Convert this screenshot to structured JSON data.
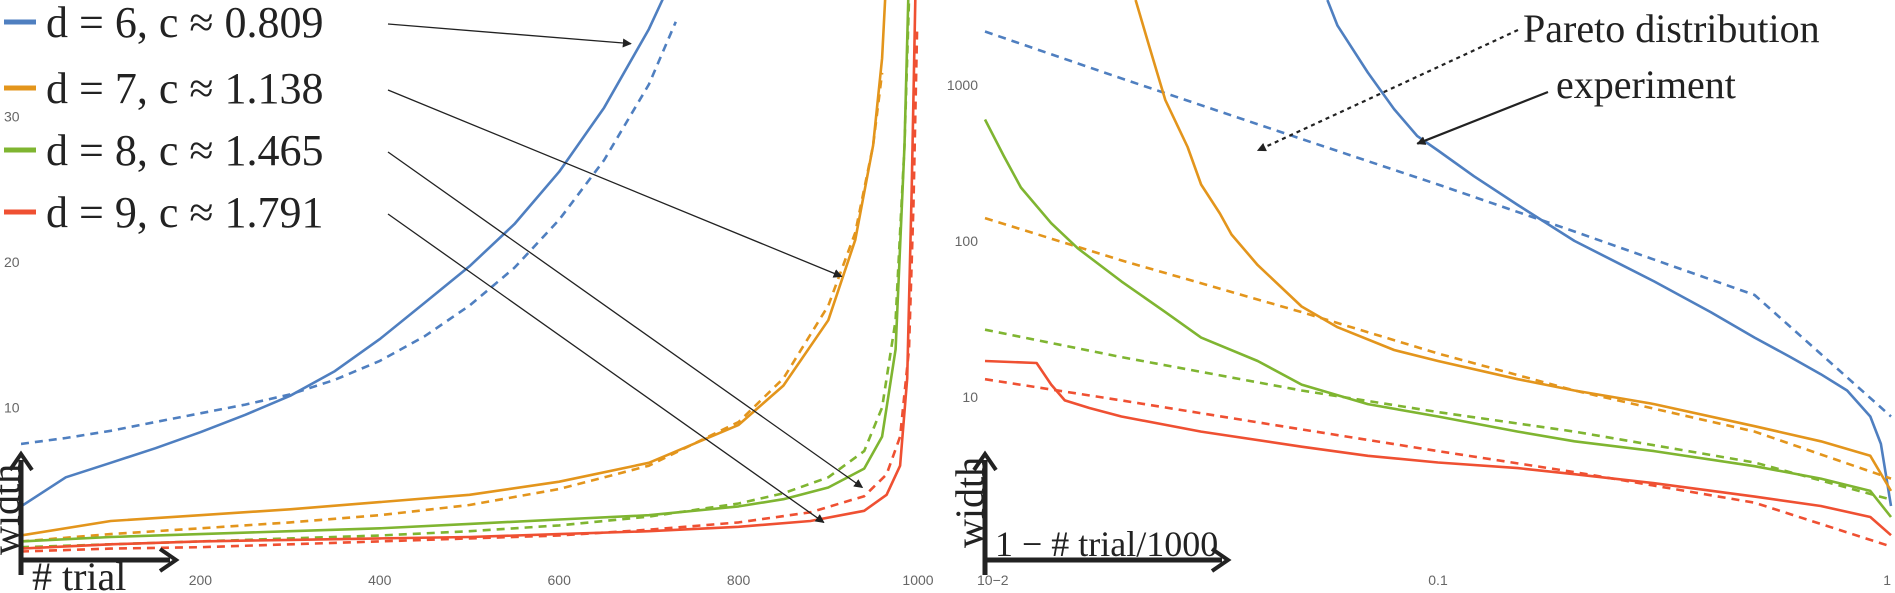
{
  "chart_data": [
    {
      "type": "line",
      "xlabel": "# trial",
      "ylabel": "width",
      "xlim": [
        0,
        1000
      ],
      "ylim": [
        0,
        38
      ],
      "xticks": [
        200,
        400,
        600,
        800,
        1000
      ],
      "yticks": [
        10,
        20,
        30
      ],
      "legend_placement": "top-left",
      "grid": false,
      "series": [
        {
          "name": "d = 6, c ≈ 0.809",
          "d": "6",
          "c": "0.809",
          "color": "#4f7fc0",
          "style": "solid",
          "x": [
            0,
            50,
            100,
            150,
            200,
            250,
            300,
            350,
            400,
            450,
            500,
            550,
            600,
            650,
            700,
            715,
            725
          ],
          "y": [
            3.2,
            5.2,
            6.2,
            7.2,
            8.3,
            9.5,
            10.8,
            12.5,
            14.7,
            17.2,
            19.7,
            22.6,
            26.2,
            30.6,
            36.0,
            38.0,
            40.0
          ]
        },
        {
          "name": "",
          "color": "#4f7fc0",
          "style": "dashed",
          "x": [
            0,
            50,
            100,
            150,
            200,
            250,
            300,
            350,
            400,
            450,
            500,
            550,
            600,
            650,
            700,
            730
          ],
          "y": [
            7.5,
            7.9,
            8.4,
            9.0,
            9.6,
            10.2,
            10.9,
            11.9,
            13.2,
            14.9,
            17.0,
            19.6,
            22.9,
            27.0,
            32.2,
            36.5
          ]
        },
        {
          "name": "d = 7, c ≈ 1.138",
          "d": "7",
          "c": "1.138",
          "color": "#e3951c",
          "style": "solid",
          "x": [
            0,
            100,
            200,
            300,
            400,
            500,
            600,
            700,
            800,
            850,
            900,
            930,
            950,
            960,
            965
          ],
          "y": [
            1.2,
            2.2,
            2.6,
            3.0,
            3.5,
            4.0,
            4.9,
            6.2,
            8.8,
            11.5,
            16.0,
            21.5,
            28.0,
            34.0,
            40.0
          ]
        },
        {
          "name": "",
          "color": "#e3951c",
          "style": "dashed",
          "x": [
            0,
            100,
            200,
            300,
            400,
            500,
            600,
            700,
            800,
            850,
            900,
            930,
            950,
            960
          ],
          "y": [
            0.8,
            1.3,
            1.7,
            2.1,
            2.6,
            3.3,
            4.4,
            6.0,
            9.0,
            12.0,
            17.0,
            22.0,
            28.0,
            33.0
          ]
        },
        {
          "name": "d = 8, c ≈ 1.465",
          "d": "8",
          "c": "1.465",
          "color": "#7fb531",
          "style": "solid",
          "x": [
            0,
            100,
            200,
            300,
            400,
            500,
            600,
            700,
            800,
            850,
            900,
            940,
            960,
            975,
            985,
            990
          ],
          "y": [
            0.8,
            1.1,
            1.3,
            1.5,
            1.7,
            2.0,
            2.3,
            2.6,
            3.2,
            3.7,
            4.5,
            5.8,
            8.0,
            14.0,
            28.0,
            40.0
          ]
        },
        {
          "name": "",
          "color": "#7fb531",
          "style": "dashed",
          "x": [
            0,
            100,
            200,
            300,
            400,
            500,
            600,
            700,
            800,
            850,
            900,
            940,
            960,
            975,
            985,
            990
          ],
          "y": [
            0.4,
            0.6,
            0.8,
            1.0,
            1.2,
            1.5,
            1.9,
            2.5,
            3.4,
            4.1,
            5.2,
            7.0,
            10.0,
            16.0,
            28.0,
            38.0
          ]
        },
        {
          "name": "d = 9, c ≈ 1.791",
          "d": "9",
          "c": "1.791",
          "color": "#ef5032",
          "style": "solid",
          "x": [
            0,
            100,
            200,
            300,
            400,
            500,
            600,
            700,
            800,
            880,
            940,
            965,
            980,
            988,
            993,
            997
          ],
          "y": [
            0.3,
            0.6,
            0.8,
            0.9,
            1.0,
            1.1,
            1.3,
            1.5,
            1.8,
            2.2,
            2.9,
            4.0,
            6.0,
            12.0,
            25.0,
            38.0
          ]
        },
        {
          "name": "",
          "color": "#ef5032",
          "style": "dashed",
          "x": [
            0,
            100,
            200,
            300,
            400,
            500,
            600,
            700,
            800,
            880,
            940,
            965,
            980,
            990,
            995,
            999
          ],
          "y": [
            0.1,
            0.3,
            0.4,
            0.6,
            0.8,
            1.0,
            1.2,
            1.6,
            2.1,
            2.8,
            3.9,
            5.4,
            8.0,
            14.0,
            24.0,
            36.0
          ]
        }
      ],
      "arrow_targets": [
        {
          "series": 0,
          "x": 680,
          "y": 35.0
        },
        {
          "series": 2,
          "x": 915,
          "y": 19.0
        },
        {
          "series": 4,
          "x": 938,
          "y": 4.5
        },
        {
          "series": 6,
          "x": 895,
          "y": 2.1
        }
      ]
    },
    {
      "type": "line",
      "xlabel": "1 −  # trial/1000",
      "ylabel": "width",
      "x_scale": "log",
      "y_scale": "log",
      "xlim": [
        0.01,
        1
      ],
      "ylim": [
        1,
        3500
      ],
      "xtick_labels": [
        "10−2",
        "0.1",
        "1"
      ],
      "xtick_values": [
        0.01,
        0.1,
        1
      ],
      "yticks": [
        10,
        100,
        1000
      ],
      "annotation": {
        "line1": "Pareto distribution",
        "line2": "experiment"
      },
      "annotation_targets": [
        {
          "label": "experiment",
          "series": 0,
          "x": 0.09,
          "y": 420
        },
        {
          "label": "Pareto distribution",
          "series": 1,
          "x": 0.04,
          "y": 380
        }
      ],
      "series": [
        {
          "color": "#4f7fc0",
          "style": "solid",
          "x": [
            0.057,
            0.06,
            0.07,
            0.08,
            0.09,
            0.1,
            0.12,
            0.15,
            0.2,
            0.25,
            0.3,
            0.4,
            0.5,
            0.6,
            0.7,
            0.8,
            0.9,
            0.95,
            1.0
          ],
          "y": [
            3500,
            2400,
            1200,
            700,
            470,
            380,
            260,
            170,
            100,
            72,
            55,
            35,
            24,
            18,
            14,
            11,
            7.5,
            5,
            2
          ]
        },
        {
          "color": "#4f7fc0",
          "style": "dashed",
          "x": [
            0.01,
            0.02,
            0.05,
            0.1,
            0.2,
            0.5,
            1.0
          ],
          "y": [
            2200,
            1100,
            450,
            230,
            115,
            45,
            7.5
          ]
        },
        {
          "color": "#e3951c",
          "style": "solid",
          "x": [
            0.0215,
            0.023,
            0.025,
            0.028,
            0.03,
            0.033,
            0.035,
            0.04,
            0.05,
            0.06,
            0.08,
            0.1,
            0.15,
            0.2,
            0.3,
            0.5,
            0.7,
            0.9,
            1.0
          ],
          "y": [
            3500,
            1800,
            800,
            400,
            230,
            150,
            110,
            70,
            38,
            28,
            20,
            17,
            13,
            11,
            9,
            6.5,
            5.2,
            4.2,
            2.5
          ]
        },
        {
          "color": "#e3951c",
          "style": "dashed",
          "x": [
            0.01,
            0.02,
            0.05,
            0.1,
            0.2,
            0.5,
            1.0
          ],
          "y": [
            140,
            75,
            35,
            19,
            11,
            6,
            3
          ]
        },
        {
          "color": "#7fb531",
          "style": "solid",
          "x": [
            0.01,
            0.011,
            0.012,
            0.014,
            0.016,
            0.02,
            0.025,
            0.03,
            0.04,
            0.05,
            0.07,
            0.1,
            0.15,
            0.2,
            0.3,
            0.5,
            0.7,
            0.9,
            1.0
          ],
          "y": [
            600,
            350,
            220,
            130,
            90,
            55,
            35,
            24,
            17,
            12,
            9,
            7.5,
            6,
            5.2,
            4.5,
            3.6,
            3,
            2.5,
            1.7
          ]
        },
        {
          "color": "#7fb531",
          "style": "dashed",
          "x": [
            0.01,
            0.02,
            0.05,
            0.1,
            0.2,
            0.5,
            1.0
          ],
          "y": [
            27,
            18,
            11,
            8,
            6,
            3.8,
            2.2
          ]
        },
        {
          "color": "#ef5032",
          "style": "solid",
          "x": [
            0.01,
            0.013,
            0.014,
            0.015,
            0.017,
            0.02,
            0.03,
            0.05,
            0.07,
            0.1,
            0.15,
            0.2,
            0.3,
            0.5,
            0.7,
            0.9,
            1.0
          ],
          "y": [
            17,
            16.5,
            12,
            9.5,
            8.5,
            7.5,
            6,
            4.8,
            4.2,
            3.8,
            3.5,
            3.2,
            2.8,
            2.3,
            2.0,
            1.7,
            1.3
          ]
        },
        {
          "color": "#ef5032",
          "style": "dashed",
          "x": [
            0.01,
            0.02,
            0.05,
            0.1,
            0.2,
            0.5,
            1.0
          ],
          "y": [
            13,
            9.5,
            6.2,
            4.5,
            3.3,
            2.1,
            1.1
          ]
        }
      ]
    }
  ]
}
